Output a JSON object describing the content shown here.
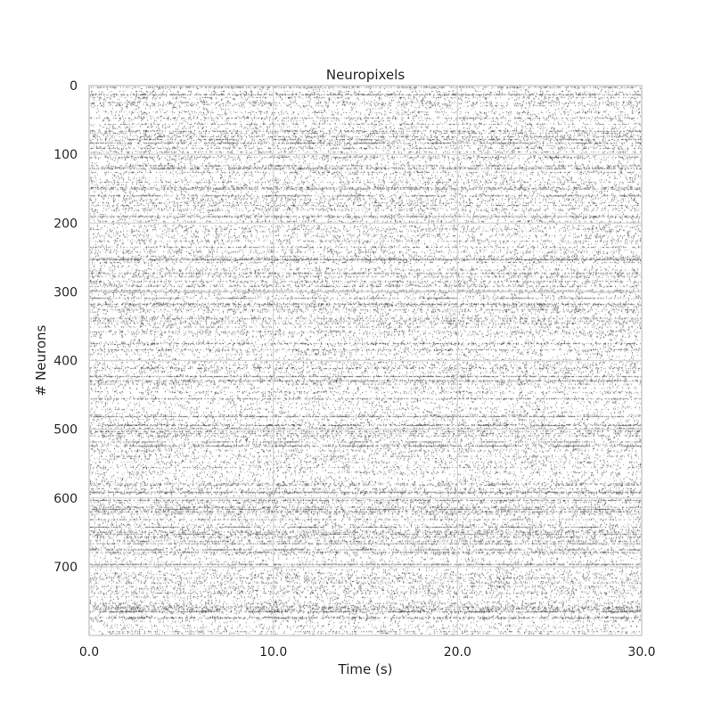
{
  "chart_data": {
    "type": "raster",
    "title": "Neuropixels",
    "xlabel": "Time (s)",
    "ylabel": "# Neurons",
    "xlim": [
      0,
      30
    ],
    "ylim": [
      800,
      0
    ],
    "x_ticks": [
      {
        "value": 0,
        "label": "0.0"
      },
      {
        "value": 10,
        "label": "10.0"
      },
      {
        "value": 20,
        "label": "20.0"
      },
      {
        "value": 30,
        "label": "30.0"
      }
    ],
    "y_ticks": [
      {
        "value": 0,
        "label": "0"
      },
      {
        "value": 100,
        "label": "100"
      },
      {
        "value": 200,
        "label": "200"
      },
      {
        "value": 300,
        "label": "300"
      },
      {
        "value": 400,
        "label": "400"
      },
      {
        "value": 500,
        "label": "500"
      },
      {
        "value": 600,
        "label": "600"
      },
      {
        "value": 700,
        "label": "700"
      }
    ],
    "neuron_count": 800,
    "grid": true,
    "legend": "none",
    "colors": {
      "spike": "#000000",
      "grid": "#d4d4d4",
      "background": "#ffffff",
      "spine": "#cccccc"
    }
  }
}
